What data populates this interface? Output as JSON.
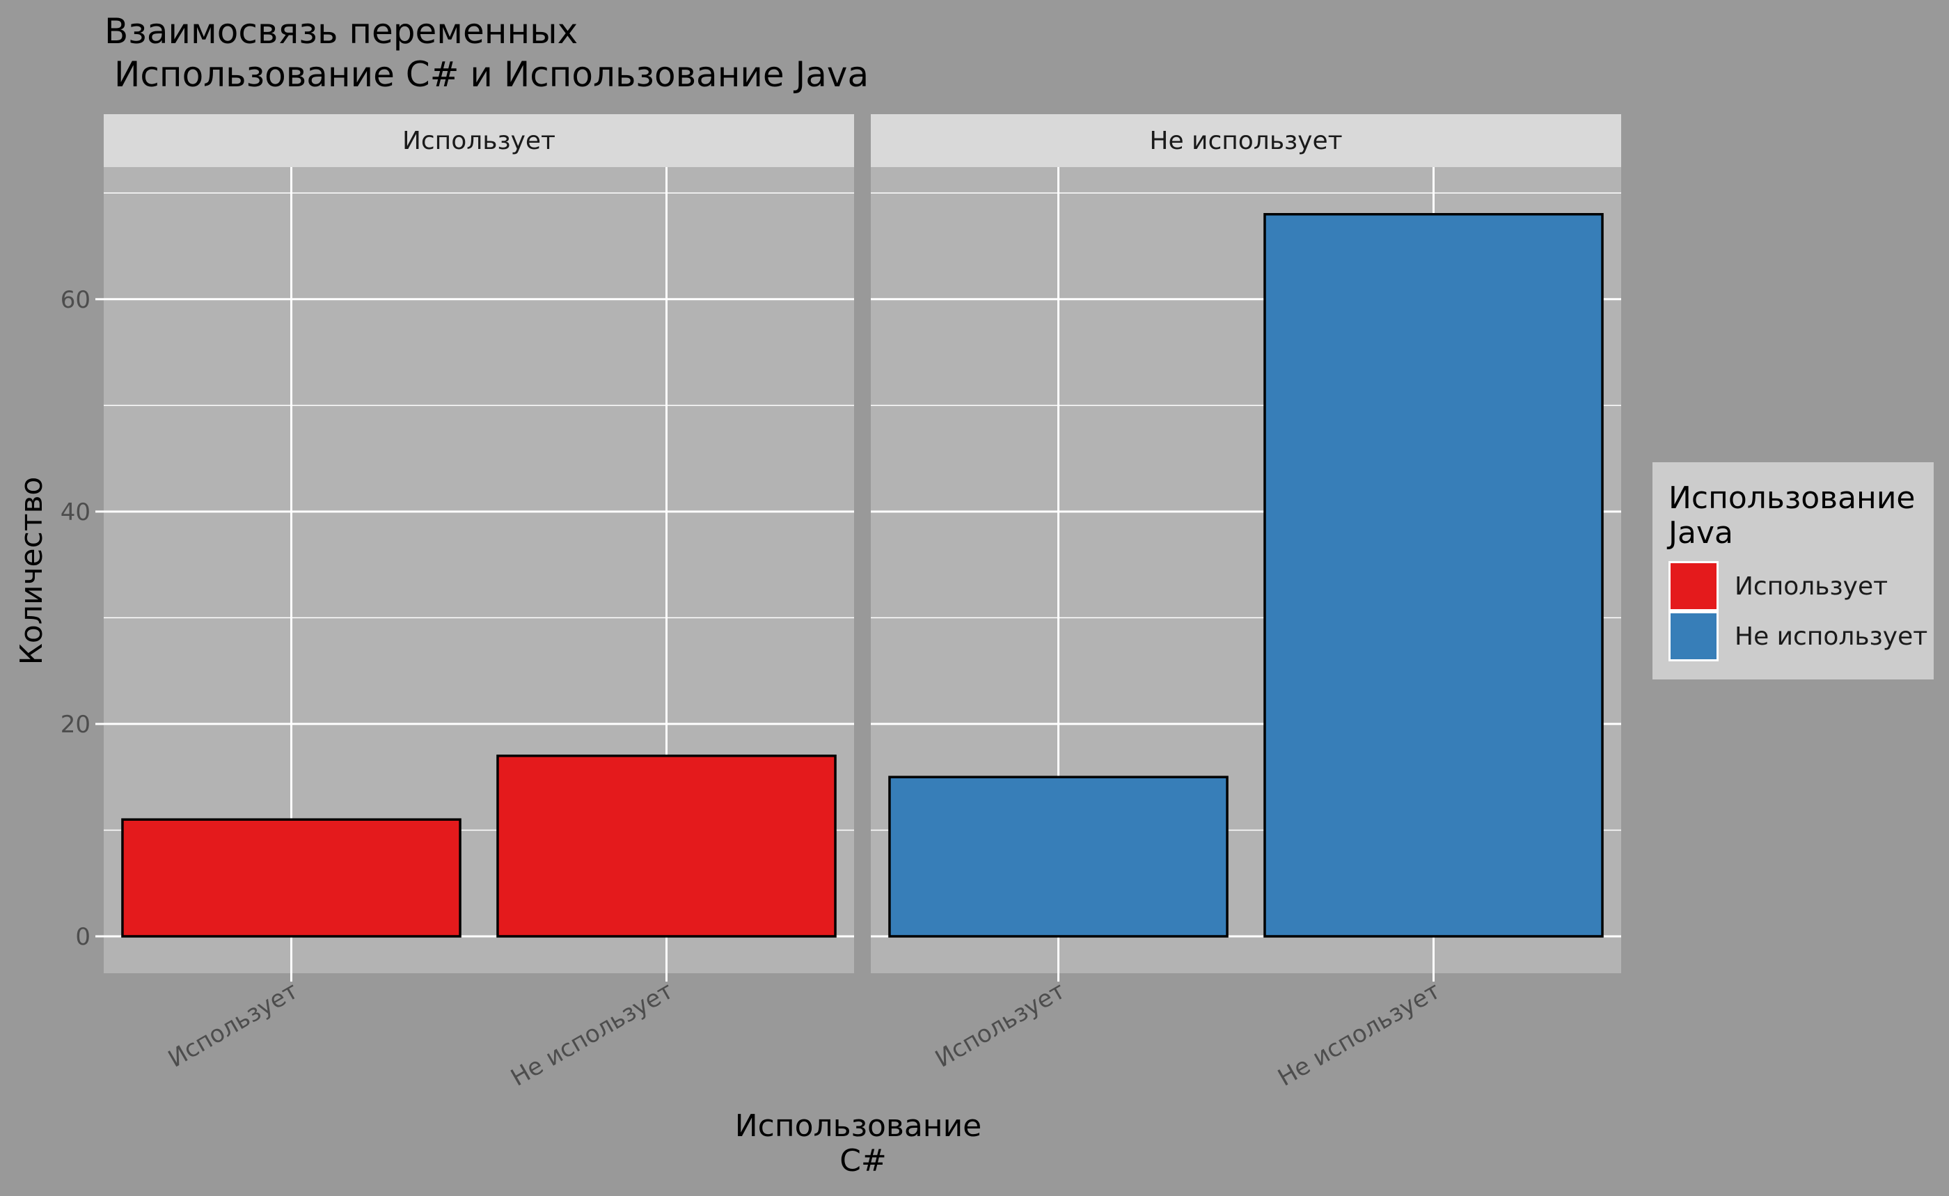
{
  "chart_data": {
    "type": "bar",
    "title": [
      "Взаимосвязь переменных",
      "Использование C# и Использование Java"
    ],
    "xlabel": [
      "Использование",
      "C#"
    ],
    "ylabel": "Количество",
    "ylim": [
      0,
      71
    ],
    "yticks": [
      0,
      20,
      40,
      60
    ],
    "grid": true,
    "facets": [
      {
        "label": "Использует",
        "categories": [
          "Использует",
          "Не использует"
        ],
        "values": [
          11,
          17
        ],
        "color": "#E41A1C"
      },
      {
        "label": "Не использует",
        "categories": [
          "Использует",
          "Не использует"
        ],
        "values": [
          15,
          68
        ],
        "color": "#377EB8"
      }
    ],
    "legend": {
      "title": [
        "Использование",
        "Java"
      ],
      "placement": "right",
      "entries": [
        {
          "label": "Использует",
          "color": "#E41A1C"
        },
        {
          "label": "Не использует",
          "color": "#377EB8"
        }
      ]
    },
    "colors": {
      "background": "#999999",
      "panel": "#B3B3B3",
      "strip": "#D9D9D9",
      "legend_bg": "#CCCCCC",
      "grid": "#FFFFFF",
      "bar_outline": "#000000"
    }
  }
}
